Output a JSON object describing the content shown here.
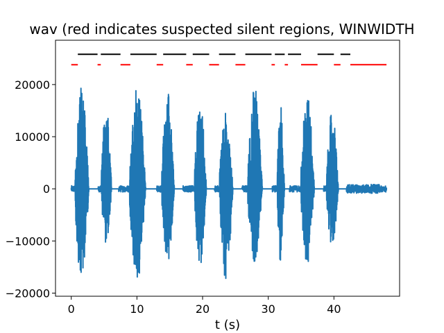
{
  "chart_data": {
    "type": "line",
    "title": "wav (red indicates suspected silent regions, WINWIDTH",
    "xlabel": "t (s)",
    "ylabel": "",
    "xlim": [
      -2.4,
      50.0
    ],
    "ylim": [
      -20600,
      28500
    ],
    "x_ticks": [
      0,
      10,
      20,
      30,
      40
    ],
    "y_ticks": [
      -20000,
      -10000,
      0,
      10000,
      20000
    ],
    "grid": false,
    "series": [
      {
        "style": "waveform",
        "color": "#1f77b4",
        "x_start": 0.0,
        "x_end": 48.0,
        "description_bursts": [
          {
            "start": 0.6,
            "end": 4.1,
            "peak_pos": 19500,
            "peak_neg": -18000
          },
          {
            "start": 4.6,
            "end": 7.2,
            "peak_pos": 16000,
            "peak_neg": -11000
          },
          {
            "start": 8.9,
            "end": 13.0,
            "peak_pos": 20000,
            "peak_neg": -18000
          },
          {
            "start": 13.8,
            "end": 17.0,
            "peak_pos": 18500,
            "peak_neg": -14000
          },
          {
            "start": 18.8,
            "end": 21.8,
            "peak_pos": 17000,
            "peak_neg": -15000
          },
          {
            "start": 22.6,
            "end": 26.0,
            "peak_pos": 15000,
            "peak_neg": -17500
          },
          {
            "start": 26.9,
            "end": 30.6,
            "peak_pos": 19500,
            "peak_neg": -14000
          },
          {
            "start": 31.4,
            "end": 33.2,
            "peak_pos": 17000,
            "peak_neg": -14500
          },
          {
            "start": 35.0,
            "end": 38.4,
            "peak_pos": 19000,
            "peak_neg": -14500
          },
          {
            "start": 38.9,
            "end": 41.9,
            "peak_pos": 15000,
            "peak_neg": -11000
          }
        ]
      },
      {
        "style": "segments",
        "color": "#000000",
        "y": 25800,
        "segments": [
          [
            1.0,
            4.0
          ],
          [
            4.5,
            7.5
          ],
          [
            9.0,
            13.0
          ],
          [
            14.0,
            17.5
          ],
          [
            18.5,
            21.0
          ],
          [
            22.5,
            25.0
          ],
          [
            26.5,
            30.5
          ],
          [
            31.0,
            32.5
          ],
          [
            33.0,
            35.0
          ],
          [
            37.5,
            40.0
          ],
          [
            41.0,
            42.5
          ]
        ]
      },
      {
        "style": "segments",
        "color": "#ff0000",
        "y": 23800,
        "segments": [
          [
            0.0,
            1.0
          ],
          [
            4.0,
            4.5
          ],
          [
            7.5,
            9.0
          ],
          [
            13.0,
            14.0
          ],
          [
            17.5,
            18.5
          ],
          [
            21.0,
            22.5
          ],
          [
            25.0,
            26.5
          ],
          [
            30.5,
            31.0
          ],
          [
            32.5,
            33.0
          ],
          [
            35.0,
            37.5
          ],
          [
            40.0,
            41.0
          ],
          [
            42.5,
            48.0
          ]
        ]
      }
    ]
  }
}
